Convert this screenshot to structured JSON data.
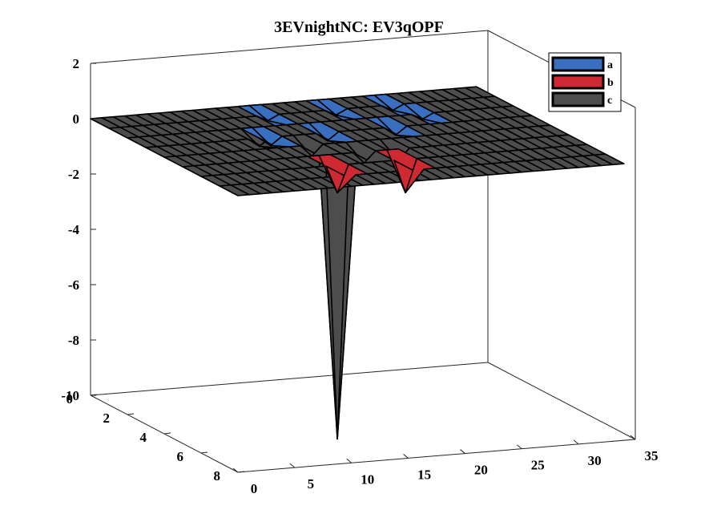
{
  "chart_data": {
    "type": "surface3d",
    "title": "3EVnightNC: EV3qOPF",
    "xlabel": "",
    "ylabel": "",
    "zlabel": "",
    "x_axis": {
      "range": [
        0,
        35
      ],
      "ticks": [
        0,
        5,
        10,
        15,
        20,
        25,
        30,
        35
      ]
    },
    "y_axis": {
      "range": [
        0,
        8
      ],
      "ticks": [
        0,
        2,
        4,
        6,
        8
      ]
    },
    "z_axis": {
      "range": [
        -10,
        2
      ],
      "ticks": [
        2,
        0,
        -2,
        -4,
        -6,
        -8,
        -10
      ]
    },
    "grid": false,
    "legend": {
      "placement": "top-right",
      "entries": [
        "a",
        "b",
        "c"
      ]
    },
    "series": [
      {
        "name": "a",
        "color": "#3a6fbf",
        "baseline": 0,
        "dips": [
          {
            "x": 11,
            "y": 3,
            "value": -0.3
          },
          {
            "x": 14,
            "y": 1,
            "value": -0.2
          },
          {
            "x": 16,
            "y": 3,
            "value": -0.3
          },
          {
            "x": 20,
            "y": 1,
            "value": -0.2
          },
          {
            "x": 22,
            "y": 3,
            "value": -0.3
          },
          {
            "x": 25,
            "y": 1,
            "value": -0.2
          },
          {
            "x": 26,
            "y": 2,
            "value": -0.2
          }
        ]
      },
      {
        "name": "b",
        "color": "#cf2a33",
        "baseline": 0,
        "dips": [
          {
            "x": 12,
            "y": 6,
            "value": -1.0
          },
          {
            "x": 18,
            "y": 6,
            "value": -1.2
          }
        ]
      },
      {
        "name": "c",
        "color": "#4d4d4d",
        "baseline": 0,
        "dips": [
          {
            "x": 12,
            "y": 6,
            "value": -9.9
          },
          {
            "x": 10,
            "y": 3,
            "value": -0.3
          },
          {
            "x": 13,
            "y": 4,
            "value": -0.4
          },
          {
            "x": 16,
            "y": 5,
            "value": -0.4
          },
          {
            "x": 19,
            "y": 5,
            "value": -0.4
          }
        ]
      }
    ],
    "grid_size": {
      "nx": 34,
      "ny": 8
    }
  }
}
